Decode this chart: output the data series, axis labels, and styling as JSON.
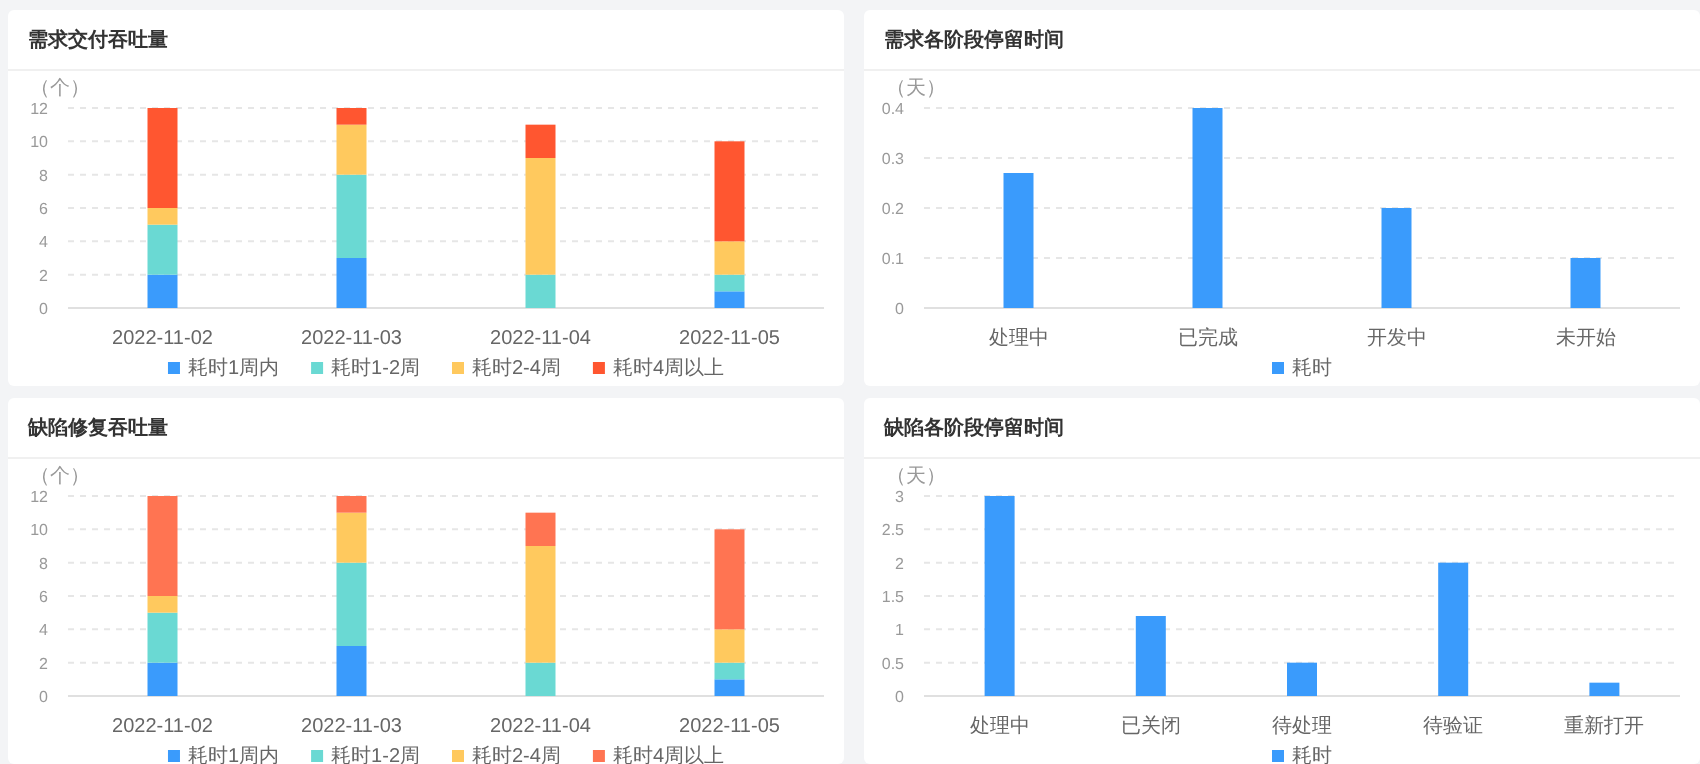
{
  "chart_data": [
    {
      "type": "bar",
      "title": "需求交付吞吐量",
      "ylabel": "（个）",
      "categories": [
        "2022-11-02",
        "2022-11-03",
        "2022-11-04",
        "2022-11-05"
      ],
      "stacked": true,
      "ylim": [
        0,
        12
      ],
      "yticks": [
        0,
        2,
        4,
        6,
        8,
        10,
        12
      ],
      "grid": "y",
      "legend": "bottom",
      "series": [
        {
          "name": "耗时1周内",
          "color": "#3a9bfc",
          "values": [
            2,
            3,
            0,
            1
          ]
        },
        {
          "name": "耗时1-2周",
          "color": "#6ad9d3",
          "values": [
            3,
            5,
            2,
            1
          ]
        },
        {
          "name": "耗时2-4周",
          "color": "#ffc95e",
          "values": [
            1,
            3,
            7,
            2
          ]
        },
        {
          "name": "耗时4周以上",
          "color": "#ff5630",
          "values": [
            6,
            1,
            2,
            6
          ]
        }
      ]
    },
    {
      "type": "bar",
      "title": "需求各阶段停留时间",
      "ylabel": "（天）",
      "categories": [
        "处理中",
        "已完成",
        "开发中",
        "未开始"
      ],
      "ylim": [
        0,
        0.4
      ],
      "yticks": [
        0,
        0.1,
        0.2,
        0.3,
        0.4
      ],
      "grid": "y",
      "legend": "bottom",
      "series": [
        {
          "name": "耗时",
          "color": "#3a9bfc",
          "values": [
            0.27,
            0.4,
            0.2,
            0.1
          ]
        }
      ]
    },
    {
      "type": "bar",
      "title": "缺陷修复吞吐量",
      "ylabel": "（个）",
      "categories": [
        "2022-11-02",
        "2022-11-03",
        "2022-11-04",
        "2022-11-05"
      ],
      "stacked": true,
      "ylim": [
        0,
        12
      ],
      "yticks": [
        0,
        2,
        4,
        6,
        8,
        10,
        12
      ],
      "grid": "y",
      "legend": "bottom",
      "series": [
        {
          "name": "耗时1周内",
          "color": "#3a9bfc",
          "values": [
            2,
            3,
            0,
            1
          ]
        },
        {
          "name": "耗时1-2周",
          "color": "#6ad9d3",
          "values": [
            3,
            5,
            2,
            1
          ]
        },
        {
          "name": "耗时2-4周",
          "color": "#ffc95e",
          "values": [
            1,
            3,
            7,
            2
          ]
        },
        {
          "name": "耗时4周以上",
          "color": "#ff7452",
          "values": [
            6,
            1,
            2,
            6
          ]
        }
      ]
    },
    {
      "type": "bar",
      "title": "缺陷各阶段停留时间",
      "ylabel": "（天）",
      "categories": [
        "处理中",
        "已关闭",
        "待处理",
        "待验证",
        "重新打开"
      ],
      "ylim": [
        0,
        3
      ],
      "yticks": [
        0,
        0.5,
        1,
        1.5,
        2,
        2.5,
        3
      ],
      "grid": "y",
      "legend": "bottom",
      "series": [
        {
          "name": "耗时",
          "color": "#3a9bfc",
          "values": [
            3,
            1.2,
            0.5,
            2,
            0.2
          ]
        }
      ]
    }
  ]
}
